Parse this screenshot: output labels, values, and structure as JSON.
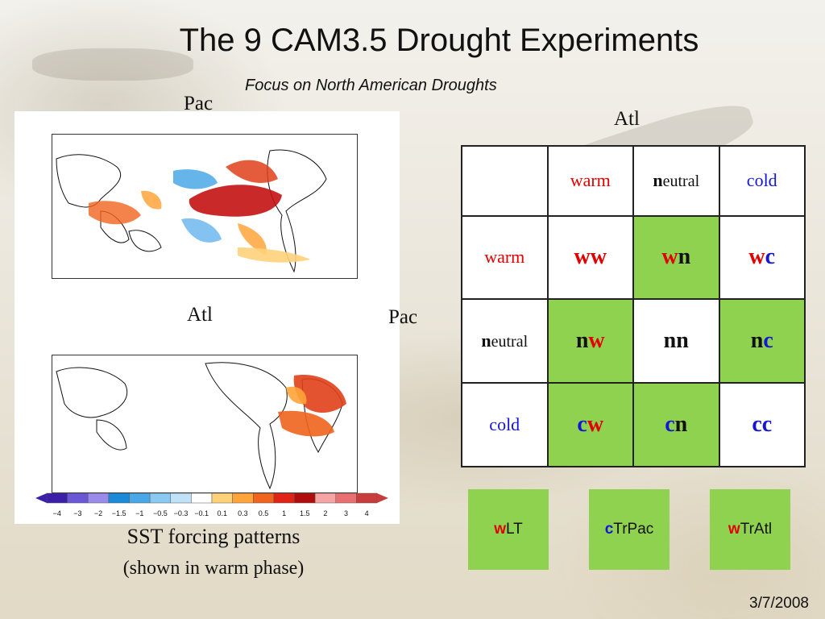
{
  "slide": {
    "title": "The 9 CAM3.5 Drought Experiments",
    "subtitle": "Focus on North American Droughts",
    "date": "3/7/2008"
  },
  "left": {
    "pac_label": "Pac",
    "atl_label": "Atl",
    "colorbar_ticks": [
      "−4",
      "−3",
      "−2",
      "−1.5",
      "−1",
      "−0.5",
      "−0.3",
      "−0.1",
      "0.1",
      "0.3",
      "0.5",
      "1",
      "1.5",
      "2",
      "3",
      "4"
    ],
    "colorbar_colors": [
      "#3b1fa8",
      "#6a57d6",
      "#9a8bea",
      "#1c8ad8",
      "#4aa8e8",
      "#8ac9f0",
      "#bfe2f7",
      "#ffffff",
      "#ffd27a",
      "#ffa43a",
      "#f0641e",
      "#e02314",
      "#b00c0c",
      "#f5a3a3",
      "#e87070",
      "#c83c3c"
    ],
    "caption_line1": "SST forcing patterns",
    "caption_line2": "(shown in warm phase)"
  },
  "grid": {
    "atl_label": "Atl",
    "pac_label": "Pac",
    "headers": [
      {
        "first": "w",
        "rest": "arm",
        "first_color": "red"
      },
      {
        "first": "n",
        "rest": "eutral",
        "first_color": "black"
      },
      {
        "first": "c",
        "rest": "old",
        "first_color": "blue"
      }
    ],
    "rows": [
      {
        "first": "w",
        "rest": "arm",
        "first_color": "red",
        "cells": [
          {
            "a": "w",
            "a_color": "red",
            "b": "w",
            "b_color": "red",
            "green": false
          },
          {
            "a": "w",
            "a_color": "red",
            "b": "n",
            "b_color": "black",
            "green": true
          },
          {
            "a": "w",
            "a_color": "red",
            "b": "c",
            "b_color": "blue",
            "green": false
          }
        ]
      },
      {
        "first": "n",
        "rest": "eutral",
        "first_color": "black",
        "cells": [
          {
            "a": "n",
            "a_color": "black",
            "b": "w",
            "b_color": "red",
            "green": true
          },
          {
            "a": "n",
            "a_color": "black",
            "b": "n",
            "b_color": "black",
            "green": false
          },
          {
            "a": "n",
            "a_color": "black",
            "b": "c",
            "b_color": "blue",
            "green": true
          }
        ]
      },
      {
        "first": "c",
        "rest": "old",
        "first_color": "blue",
        "cells": [
          {
            "a": "c",
            "a_color": "blue",
            "b": "w",
            "b_color": "red",
            "green": true
          },
          {
            "a": "c",
            "a_color": "blue",
            "b": "n",
            "b_color": "black",
            "green": true
          },
          {
            "a": "c",
            "a_color": "blue",
            "b": "c",
            "b_color": "blue",
            "green": false
          }
        ]
      }
    ]
  },
  "boxes": [
    {
      "prefix": "w",
      "prefix_color": "red",
      "text": "LT"
    },
    {
      "prefix": "c",
      "prefix_color": "blue",
      "text": "TrPac"
    },
    {
      "prefix": "w",
      "prefix_color": "red",
      "text": "TrAtl"
    }
  ],
  "colors": {
    "red": "#e00000",
    "blue": "#1515d8",
    "black": "#111111",
    "green": "#8fd24f"
  }
}
